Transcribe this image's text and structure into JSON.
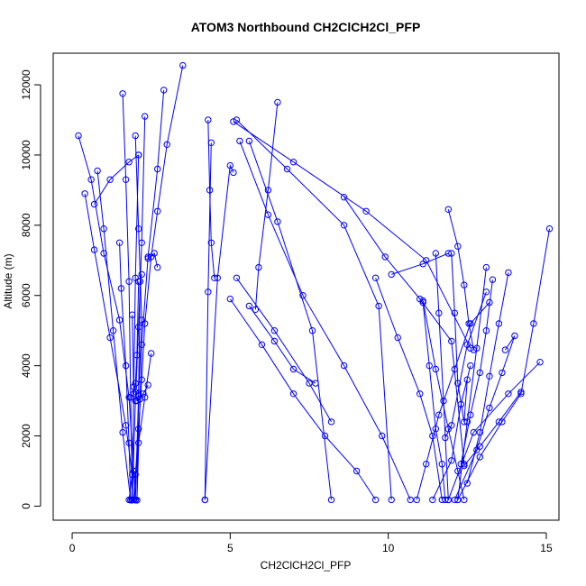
{
  "chart_data": {
    "type": "line",
    "title": "ATOM3 Northbound CH2ClCH2Cl_PFP",
    "xlabel": "CH2ClCH2Cl_PFP",
    "ylabel": "Altitude (m)",
    "xlim": [
      -0.6,
      15.4
    ],
    "ylim": [
      -400,
      12900
    ],
    "x_ticks": [
      0,
      5,
      10,
      15
    ],
    "y_ticks": [
      0,
      2000,
      4000,
      6000,
      8000,
      10000,
      12000
    ],
    "grid": false,
    "point_style": "open-circle",
    "colors": {
      "series": "#0000ff",
      "axes": "#000000"
    },
    "series": [
      {
        "x": [
          3.5,
          3.0,
          2.7,
          2.5,
          2.3,
          2.2,
          2.1,
          2.0,
          1.95
        ],
        "y": [
          12550,
          10300,
          8400,
          7100,
          5200,
          3600,
          2200,
          900,
          180
        ]
      },
      {
        "x": [
          2.9,
          2.7,
          2.4,
          2.2,
          2.05
        ],
        "y": [
          11850,
          9600,
          7100,
          4600,
          170
        ]
      },
      {
        "x": [
          2.3,
          2.2,
          2.1,
          2.0,
          1.9
        ],
        "y": [
          11100,
          7500,
          5100,
          3000,
          180
        ]
      },
      {
        "x": [
          1.6,
          1.7,
          1.8,
          1.85,
          1.9
        ],
        "y": [
          11750,
          9300,
          6400,
          3100,
          180
        ]
      },
      {
        "x": [
          2.0,
          2.1,
          2.2,
          2.1,
          2.0
        ],
        "y": [
          10550,
          7900,
          5300,
          3200,
          170
        ]
      },
      {
        "x": [
          2.1,
          2.0,
          1.95,
          1.9
        ],
        "y": [
          10000,
          6500,
          3400,
          170
        ]
      },
      {
        "x": [
          2.2,
          2.15,
          2.1,
          2.05
        ],
        "y": [
          6600,
          6400,
          3150,
          170
        ]
      },
      {
        "x": [
          1.5,
          1.55,
          1.7,
          1.8,
          1.85
        ],
        "y": [
          7500,
          6200,
          4000,
          1800,
          170
        ]
      },
      {
        "x": [
          0.2,
          0.6,
          1.0,
          1.5,
          1.8,
          1.95,
          2.0
        ],
        "y": [
          10550,
          9300,
          7200,
          5300,
          3100,
          1000,
          180
        ]
      },
      {
        "x": [
          0.4,
          0.7,
          1.2,
          1.7,
          1.9,
          1.8
        ],
        "y": [
          8900,
          7300,
          4800,
          2300,
          900,
          180
        ]
      },
      {
        "x": [
          0.8,
          1.0,
          1.3,
          1.6,
          1.85
        ],
        "y": [
          9550,
          7900,
          5000,
          2100,
          180
        ]
      },
      {
        "x": [
          0.7,
          1.2,
          1.8,
          2.1
        ],
        "y": [
          8600,
          9300,
          9800,
          10000
        ]
      },
      {
        "x": [
          1.9,
          1.95,
          2.0,
          2.05,
          2.1
        ],
        "y": [
          5450,
          3200,
          3500,
          4300,
          6400
        ]
      },
      {
        "x": [
          2.4,
          2.25,
          2.15,
          2.05,
          2.0
        ],
        "y": [
          3450,
          3200,
          3050,
          3000,
          3250
        ]
      },
      {
        "x": [
          2.5,
          2.3,
          2.1,
          1.95
        ],
        "y": [
          4350,
          3100,
          1800,
          180
        ]
      },
      {
        "x": [
          2.4,
          2.6,
          2.7
        ],
        "y": [
          7050,
          7200,
          6800
        ]
      },
      {
        "x": [
          4.3,
          4.35,
          4.4,
          4.5
        ],
        "y": [
          11000,
          9000,
          7500,
          6500
        ]
      },
      {
        "x": [
          4.4,
          4.3,
          4.2
        ],
        "y": [
          10350,
          6100,
          180
        ]
      },
      {
        "x": [
          4.2,
          4.6,
          5.0,
          5.1
        ],
        "y": [
          180,
          6500,
          9700,
          9500
        ]
      },
      {
        "x": [
          5.2,
          6.8,
          8.6,
          9.7,
          10.1
        ],
        "y": [
          11000,
          9600,
          8000,
          5700,
          180
        ]
      },
      {
        "x": [
          5.3,
          6.2,
          7.3,
          8.6,
          9.8,
          10.7
        ],
        "y": [
          10400,
          8300,
          6000,
          4000,
          2000,
          180
        ]
      },
      {
        "x": [
          5.6,
          6.5,
          7.6,
          8.2
        ],
        "y": [
          10400,
          8100,
          5000,
          180
        ]
      },
      {
        "x": [
          5.0,
          6.0,
          7.0,
          8.0,
          9.0,
          9.6
        ],
        "y": [
          5900,
          4600,
          3200,
          2000,
          1000,
          180
        ]
      },
      {
        "x": [
          5.2,
          6.4,
          7.5,
          8.2
        ],
        "y": [
          6500,
          5000,
          3500,
          2400
        ]
      },
      {
        "x": [
          5.6,
          6.4,
          7.0,
          7.7
        ],
        "y": [
          5700,
          4700,
          3900,
          3500
        ]
      },
      {
        "x": [
          6.5,
          6.2,
          5.9,
          5.8
        ],
        "y": [
          11500,
          9000,
          6800,
          5600
        ]
      },
      {
        "x": [
          5.1,
          7.0,
          9.3,
          11.2,
          12.6
        ],
        "y": [
          10950,
          9800,
          8400,
          7000,
          4500
        ]
      },
      {
        "x": [
          8.6,
          9.9,
          11.0,
          12.0,
          12.4
        ],
        "y": [
          8800,
          7100,
          5900,
          4700,
          1200
        ]
      },
      {
        "x": [
          10.1,
          11.1,
          11.9
        ],
        "y": [
          6600,
          6900,
          7200
        ]
      },
      {
        "x": [
          9.6,
          10.3,
          11.0,
          11.4,
          11.7
        ],
        "y": [
          6500,
          4800,
          3200,
          2000,
          180
        ]
      },
      {
        "x": [
          11.5,
          11.6,
          11.75,
          11.9
        ],
        "y": [
          7200,
          5500,
          3000,
          180
        ]
      },
      {
        "x": [
          11.9,
          12.2,
          12.4,
          12.55,
          12.7
        ],
        "y": [
          8450,
          7400,
          6300,
          5200,
          4450
        ]
      },
      {
        "x": [
          11.1,
          11.5,
          11.9,
          12.2,
          12.4
        ],
        "y": [
          5850,
          3900,
          2200,
          1000,
          180
        ]
      },
      {
        "x": [
          11.1,
          11.3,
          11.5,
          11.7,
          11.8
        ],
        "y": [
          5800,
          4000,
          2200,
          1200,
          180
        ]
      },
      {
        "x": [
          12.0,
          12.1,
          12.2,
          12.4,
          12.5
        ],
        "y": [
          7200,
          5500,
          3500,
          2400,
          3600
        ]
      },
      {
        "x": [
          13.1,
          12.8,
          12.5,
          12.2
        ],
        "y": [
          6800,
          4500,
          2400,
          180
        ]
      },
      {
        "x": [
          13.3,
          13.1,
          12.9,
          12.6,
          12.3
        ],
        "y": [
          6450,
          5000,
          3800,
          2600,
          1200
        ]
      },
      {
        "x": [
          13.8,
          13.5,
          13.2,
          12.9,
          12.5
        ],
        "y": [
          6650,
          5200,
          3700,
          2100,
          650
        ]
      },
      {
        "x": [
          13.7,
          14.0,
          13.6,
          13.2,
          12.8,
          12.1
        ],
        "y": [
          4450,
          4850,
          3800,
          2800,
          1600,
          180
        ]
      },
      {
        "x": [
          14.8,
          13.8,
          12.7,
          11.9
        ],
        "y": [
          4100,
          3200,
          2100,
          180
        ]
      },
      {
        "x": [
          15.1,
          14.6,
          14.2,
          13.6,
          12.9,
          12.2
        ],
        "y": [
          7900,
          5200,
          3200,
          2400,
          1400,
          180
        ]
      },
      {
        "x": [
          11.4,
          12.0,
          12.3,
          12.6
        ],
        "y": [
          180,
          1300,
          2900,
          4000
        ]
      },
      {
        "x": [
          10.9,
          11.2,
          11.6,
          12.1,
          12.6,
          13.2
        ],
        "y": [
          180,
          1200,
          2600,
          3900,
          5200,
          5800
        ]
      },
      {
        "x": [
          11.8,
          12.0,
          12.5,
          13.1
        ],
        "y": [
          1950,
          2300,
          4600,
          6100
        ]
      },
      {
        "x": [
          12.4,
          12.9,
          13.5,
          14.2
        ],
        "y": [
          1150,
          1700,
          2400,
          3250
        ]
      }
    ]
  }
}
